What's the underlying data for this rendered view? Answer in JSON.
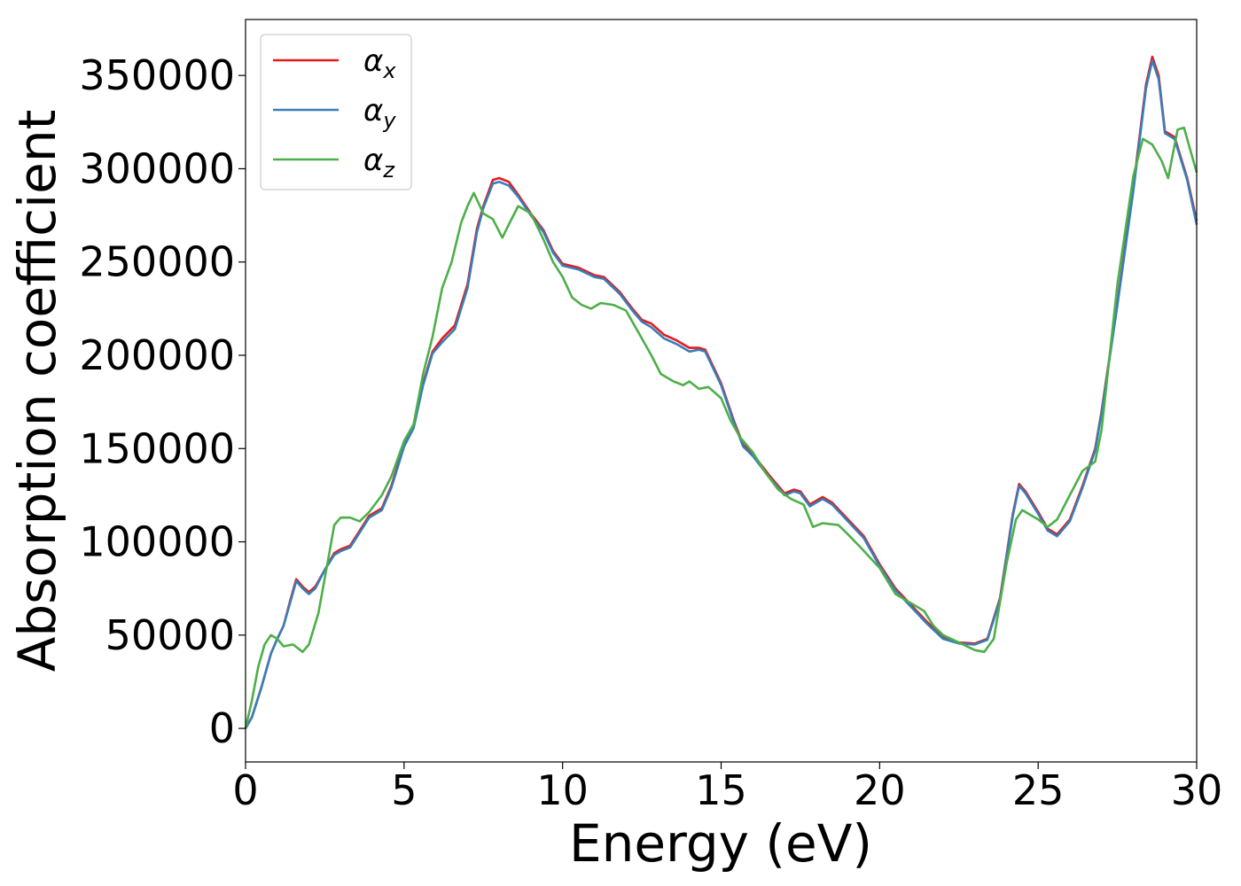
{
  "chart_data": {
    "type": "line",
    "title": "",
    "xlabel": "Energy (eV)",
    "ylabel": "Absorption coefficient",
    "xlim": [
      0,
      30
    ],
    "ylim": [
      -18000,
      380000
    ],
    "x_ticks": [
      0,
      5,
      10,
      15,
      20,
      25,
      30
    ],
    "y_ticks": [
      0,
      50000,
      100000,
      150000,
      200000,
      250000,
      300000,
      350000
    ],
    "grid": false,
    "legend_position": "top-left",
    "series": [
      {
        "name": "αx",
        "legend_base": "α",
        "legend_sub": "x",
        "color": "#e41a1c",
        "points": [
          [
            0,
            0
          ],
          [
            0.2,
            6000
          ],
          [
            0.5,
            22000
          ],
          [
            0.8,
            40000
          ],
          [
            1.0,
            48000
          ],
          [
            1.2,
            55000
          ],
          [
            1.4,
            68000
          ],
          [
            1.6,
            80000
          ],
          [
            1.8,
            76000
          ],
          [
            2.0,
            73000
          ],
          [
            2.2,
            76000
          ],
          [
            2.5,
            85000
          ],
          [
            2.8,
            94000
          ],
          [
            3.0,
            96000
          ],
          [
            3.3,
            98000
          ],
          [
            3.6,
            106000
          ],
          [
            3.9,
            114000
          ],
          [
            4.3,
            118000
          ],
          [
            4.6,
            130000
          ],
          [
            5.0,
            152000
          ],
          [
            5.3,
            162000
          ],
          [
            5.6,
            185000
          ],
          [
            5.9,
            202000
          ],
          [
            6.2,
            209000
          ],
          [
            6.6,
            216000
          ],
          [
            7.0,
            238000
          ],
          [
            7.3,
            268000
          ],
          [
            7.5,
            280000
          ],
          [
            7.8,
            294000
          ],
          [
            8.0,
            295000
          ],
          [
            8.3,
            293000
          ],
          [
            8.6,
            286000
          ],
          [
            9.0,
            276000
          ],
          [
            9.4,
            267000
          ],
          [
            9.7,
            256000
          ],
          [
            10.0,
            249000
          ],
          [
            10.5,
            247000
          ],
          [
            11.0,
            243000
          ],
          [
            11.3,
            242000
          ],
          [
            11.8,
            234000
          ],
          [
            12.2,
            225000
          ],
          [
            12.5,
            219000
          ],
          [
            12.8,
            217000
          ],
          [
            13.2,
            211000
          ],
          [
            13.6,
            208000
          ],
          [
            14.0,
            204000
          ],
          [
            14.3,
            204000
          ],
          [
            14.5,
            203000
          ],
          [
            15.0,
            185000
          ],
          [
            15.4,
            165000
          ],
          [
            15.7,
            152000
          ],
          [
            16.0,
            147000
          ],
          [
            16.5,
            136000
          ],
          [
            17.0,
            126000
          ],
          [
            17.3,
            128000
          ],
          [
            17.5,
            127000
          ],
          [
            17.8,
            120000
          ],
          [
            18.2,
            124000
          ],
          [
            18.5,
            121000
          ],
          [
            19.0,
            112000
          ],
          [
            19.5,
            103000
          ],
          [
            20.0,
            88000
          ],
          [
            20.5,
            75000
          ],
          [
            21.0,
            66000
          ],
          [
            21.5,
            57000
          ],
          [
            22.0,
            49000
          ],
          [
            22.5,
            46000
          ],
          [
            23.0,
            45500
          ],
          [
            23.4,
            48000
          ],
          [
            23.8,
            70000
          ],
          [
            24.2,
            115000
          ],
          [
            24.4,
            131000
          ],
          [
            24.6,
            127000
          ],
          [
            25.0,
            116000
          ],
          [
            25.3,
            107000
          ],
          [
            25.6,
            104000
          ],
          [
            26.0,
            112000
          ],
          [
            26.4,
            130000
          ],
          [
            26.8,
            150000
          ],
          [
            27.0,
            170000
          ],
          [
            27.5,
            228000
          ],
          [
            28.0,
            290000
          ],
          [
            28.4,
            345000
          ],
          [
            28.6,
            360000
          ],
          [
            28.8,
            350000
          ],
          [
            29.0,
            320000
          ],
          [
            29.3,
            317000
          ],
          [
            29.7,
            295000
          ],
          [
            30.0,
            272000
          ]
        ]
      },
      {
        "name": "αy",
        "legend_base": "α",
        "legend_sub": "y",
        "color": "#377eb8",
        "points": [
          [
            0,
            0
          ],
          [
            0.2,
            6000
          ],
          [
            0.5,
            22000
          ],
          [
            0.8,
            40000
          ],
          [
            1.0,
            48000
          ],
          [
            1.2,
            55000
          ],
          [
            1.4,
            67000
          ],
          [
            1.6,
            79000
          ],
          [
            1.8,
            75000
          ],
          [
            2.0,
            72000
          ],
          [
            2.2,
            75000
          ],
          [
            2.5,
            85000
          ],
          [
            2.8,
            93000
          ],
          [
            3.0,
            95000
          ],
          [
            3.3,
            97000
          ],
          [
            3.6,
            105000
          ],
          [
            3.9,
            113000
          ],
          [
            4.3,
            117000
          ],
          [
            4.6,
            129000
          ],
          [
            5.0,
            151000
          ],
          [
            5.3,
            161000
          ],
          [
            5.6,
            184000
          ],
          [
            5.9,
            201000
          ],
          [
            6.2,
            207000
          ],
          [
            6.6,
            214000
          ],
          [
            7.0,
            236000
          ],
          [
            7.3,
            266000
          ],
          [
            7.5,
            279000
          ],
          [
            7.8,
            292000
          ],
          [
            8.0,
            293000
          ],
          [
            8.3,
            291000
          ],
          [
            8.6,
            285000
          ],
          [
            9.0,
            275000
          ],
          [
            9.4,
            266000
          ],
          [
            9.7,
            255000
          ],
          [
            10.0,
            248000
          ],
          [
            10.5,
            246000
          ],
          [
            11.0,
            242000
          ],
          [
            11.3,
            241000
          ],
          [
            11.8,
            233000
          ],
          [
            12.2,
            224000
          ],
          [
            12.5,
            218000
          ],
          [
            12.8,
            215000
          ],
          [
            13.2,
            209000
          ],
          [
            13.6,
            206000
          ],
          [
            14.0,
            202000
          ],
          [
            14.3,
            203000
          ],
          [
            14.5,
            202000
          ],
          [
            15.0,
            184000
          ],
          [
            15.4,
            164000
          ],
          [
            15.7,
            151000
          ],
          [
            16.0,
            146000
          ],
          [
            16.5,
            135000
          ],
          [
            17.0,
            125000
          ],
          [
            17.3,
            127000
          ],
          [
            17.5,
            126000
          ],
          [
            17.8,
            119000
          ],
          [
            18.2,
            123000
          ],
          [
            18.5,
            120000
          ],
          [
            19.0,
            111000
          ],
          [
            19.5,
            102000
          ],
          [
            20.0,
            87000
          ],
          [
            20.5,
            74000
          ],
          [
            21.0,
            65000
          ],
          [
            21.5,
            56000
          ],
          [
            22.0,
            48000
          ],
          [
            22.5,
            45500
          ],
          [
            23.0,
            45000
          ],
          [
            23.4,
            47500
          ],
          [
            23.8,
            69000
          ],
          [
            24.2,
            114000
          ],
          [
            24.4,
            130000
          ],
          [
            24.6,
            126000
          ],
          [
            25.0,
            115000
          ],
          [
            25.3,
            106000
          ],
          [
            25.6,
            103000
          ],
          [
            26.0,
            111000
          ],
          [
            26.4,
            129000
          ],
          [
            26.8,
            149000
          ],
          [
            27.0,
            169000
          ],
          [
            27.5,
            227000
          ],
          [
            28.0,
            288000
          ],
          [
            28.4,
            343000
          ],
          [
            28.6,
            358000
          ],
          [
            28.8,
            348000
          ],
          [
            29.0,
            319000
          ],
          [
            29.3,
            316000
          ],
          [
            29.7,
            294000
          ],
          [
            30.0,
            270000
          ]
        ]
      },
      {
        "name": "αz",
        "legend_base": "α",
        "legend_sub": "z",
        "color": "#4daf4a",
        "points": [
          [
            0,
            0
          ],
          [
            0.2,
            15000
          ],
          [
            0.4,
            33000
          ],
          [
            0.6,
            45000
          ],
          [
            0.8,
            50000
          ],
          [
            1.0,
            48000
          ],
          [
            1.2,
            44000
          ],
          [
            1.5,
            45000
          ],
          [
            1.8,
            41000
          ],
          [
            2.0,
            45000
          ],
          [
            2.3,
            62000
          ],
          [
            2.6,
            90000
          ],
          [
            2.8,
            109000
          ],
          [
            3.0,
            113000
          ],
          [
            3.3,
            113000
          ],
          [
            3.6,
            111000
          ],
          [
            3.9,
            116000
          ],
          [
            4.3,
            125000
          ],
          [
            4.6,
            135000
          ],
          [
            5.0,
            154000
          ],
          [
            5.3,
            163000
          ],
          [
            5.6,
            190000
          ],
          [
            5.9,
            210000
          ],
          [
            6.2,
            236000
          ],
          [
            6.5,
            250000
          ],
          [
            6.8,
            271000
          ],
          [
            7.0,
            280000
          ],
          [
            7.2,
            287000
          ],
          [
            7.5,
            276000
          ],
          [
            7.8,
            273000
          ],
          [
            8.1,
            263000
          ],
          [
            8.3,
            270000
          ],
          [
            8.6,
            280000
          ],
          [
            9.0,
            276000
          ],
          [
            9.4,
            262000
          ],
          [
            9.7,
            250000
          ],
          [
            10.0,
            242000
          ],
          [
            10.3,
            231000
          ],
          [
            10.6,
            227000
          ],
          [
            10.9,
            225000
          ],
          [
            11.2,
            228000
          ],
          [
            11.6,
            227000
          ],
          [
            12.0,
            224000
          ],
          [
            12.4,
            212000
          ],
          [
            12.8,
            200000
          ],
          [
            13.1,
            190000
          ],
          [
            13.5,
            186000
          ],
          [
            13.8,
            184000
          ],
          [
            14.0,
            186000
          ],
          [
            14.3,
            182000
          ],
          [
            14.6,
            183000
          ],
          [
            15.0,
            177000
          ],
          [
            15.3,
            165000
          ],
          [
            15.6,
            156000
          ],
          [
            16.0,
            148000
          ],
          [
            16.4,
            137000
          ],
          [
            16.8,
            128000
          ],
          [
            17.2,
            123000
          ],
          [
            17.6,
            120000
          ],
          [
            17.9,
            108000
          ],
          [
            18.2,
            110000
          ],
          [
            18.7,
            109000
          ],
          [
            19.0,
            104000
          ],
          [
            19.4,
            97000
          ],
          [
            20.0,
            86000
          ],
          [
            20.5,
            72000
          ],
          [
            21.0,
            67000
          ],
          [
            21.4,
            63000
          ],
          [
            21.7,
            55000
          ],
          [
            22.0,
            50000
          ],
          [
            22.5,
            46000
          ],
          [
            23.0,
            42000
          ],
          [
            23.3,
            41000
          ],
          [
            23.6,
            48000
          ],
          [
            24.0,
            88000
          ],
          [
            24.3,
            112000
          ],
          [
            24.5,
            117000
          ],
          [
            24.8,
            114000
          ],
          [
            25.0,
            112000
          ],
          [
            25.3,
            108000
          ],
          [
            25.6,
            112000
          ],
          [
            26.0,
            125000
          ],
          [
            26.4,
            138000
          ],
          [
            26.8,
            143000
          ],
          [
            27.0,
            160000
          ],
          [
            27.5,
            238000
          ],
          [
            28.0,
            296000
          ],
          [
            28.3,
            316000
          ],
          [
            28.6,
            313000
          ],
          [
            28.9,
            304000
          ],
          [
            29.1,
            295000
          ],
          [
            29.4,
            321000
          ],
          [
            29.6,
            322000
          ],
          [
            30.0,
            298000
          ]
        ]
      }
    ]
  }
}
